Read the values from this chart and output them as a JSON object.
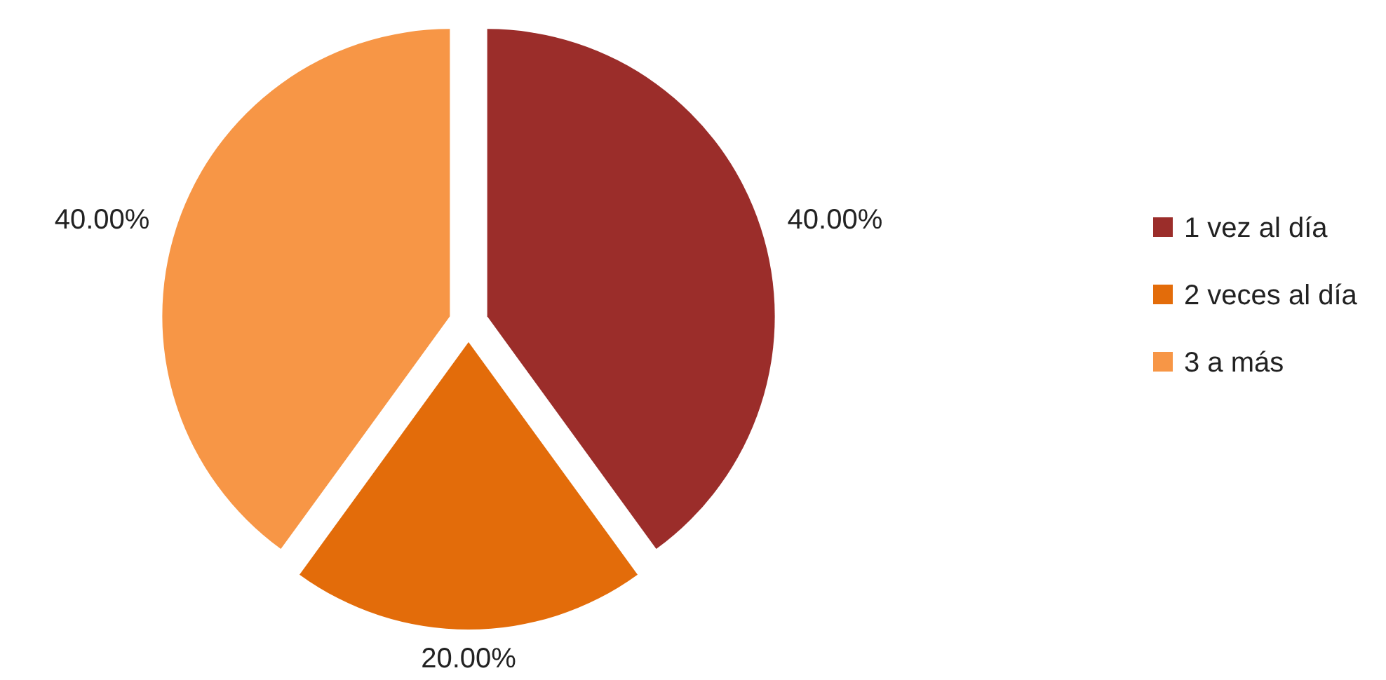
{
  "chart_data": {
    "type": "pie",
    "categories": [
      "1 vez al día",
      "2 veces al día",
      "3 a más"
    ],
    "values": [
      40,
      20,
      40
    ],
    "colors": [
      "#9b2d2a",
      "#e36c0a",
      "#f79646"
    ],
    "value_labels": [
      "40.00%",
      "20.00%",
      "40.00%"
    ],
    "legend": "right"
  }
}
